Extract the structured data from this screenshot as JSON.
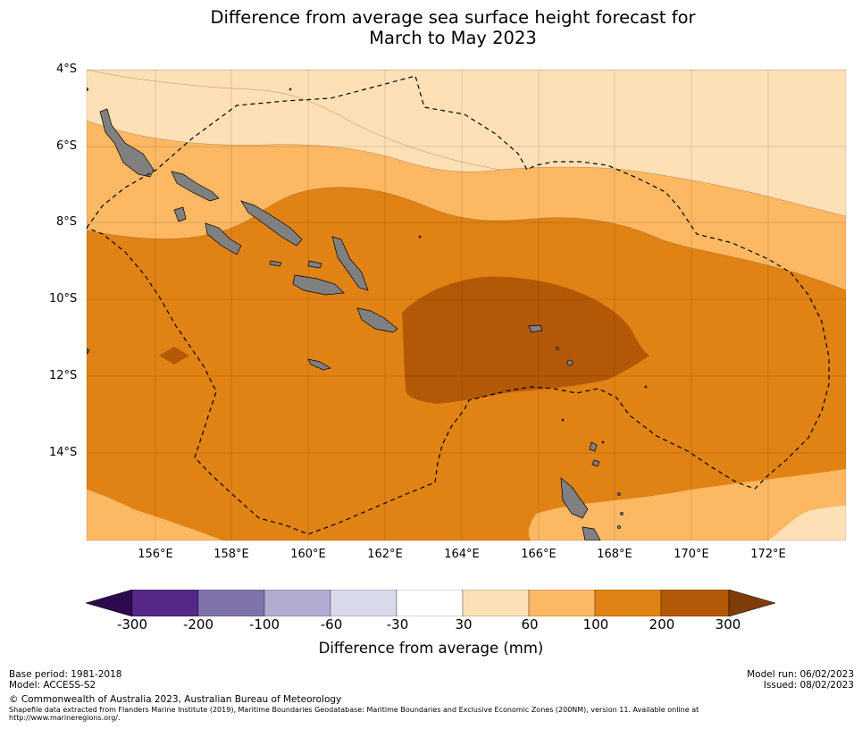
{
  "title": {
    "line1": "Difference from average sea surface height forecast for",
    "line2": "March to May 2023"
  },
  "map": {
    "lat_labels": [
      "4°S",
      "6°S",
      "8°S",
      "10°S",
      "12°S",
      "14°S"
    ],
    "lon_labels": [
      "156°E",
      "158°E",
      "160°E",
      "162°E",
      "164°E",
      "166°E",
      "168°E",
      "170°E",
      "172°E"
    ],
    "land_color": "#808080",
    "grid": true,
    "eez_boundary": "dashed"
  },
  "colorbar": {
    "label": "Difference from average (mm)",
    "ticks": [
      "-300",
      "-200",
      "-100",
      "-60",
      "-30",
      "30",
      "60",
      "100",
      "200",
      "300"
    ],
    "colors": {
      "below_min": "#2d0a4e",
      "n300_n200": "#542788",
      "n200_n100": "#8073ac",
      "n100_n60": "#b2abd2",
      "n60_n30": "#d8daeb",
      "n30_30": "#ffffff",
      "p30_60": "#fee0b6",
      "p60_100": "#fdb863",
      "p100_200": "#e08214",
      "p200_300": "#b35806",
      "above_max": "#7f3b08"
    }
  },
  "footer": {
    "base_period": "Base period: 1981-2018",
    "model": "Model: ACCESS-S2",
    "model_run": "Model run: 06/02/2023",
    "issued": "Issued: 08/02/2023",
    "copyright": "© Commonwealth of Australia 2023, Australian Bureau of Meteorology",
    "shapefile": "Shapefile data extracted from Flanders Marine Institute (2019), Maritime Boundaries Geodatabase: Maritime Boundaries and Exclusive Economic Zones (200NM), version 11. Available online at",
    "shapefile_url": "http://www.marineregions.org/."
  }
}
